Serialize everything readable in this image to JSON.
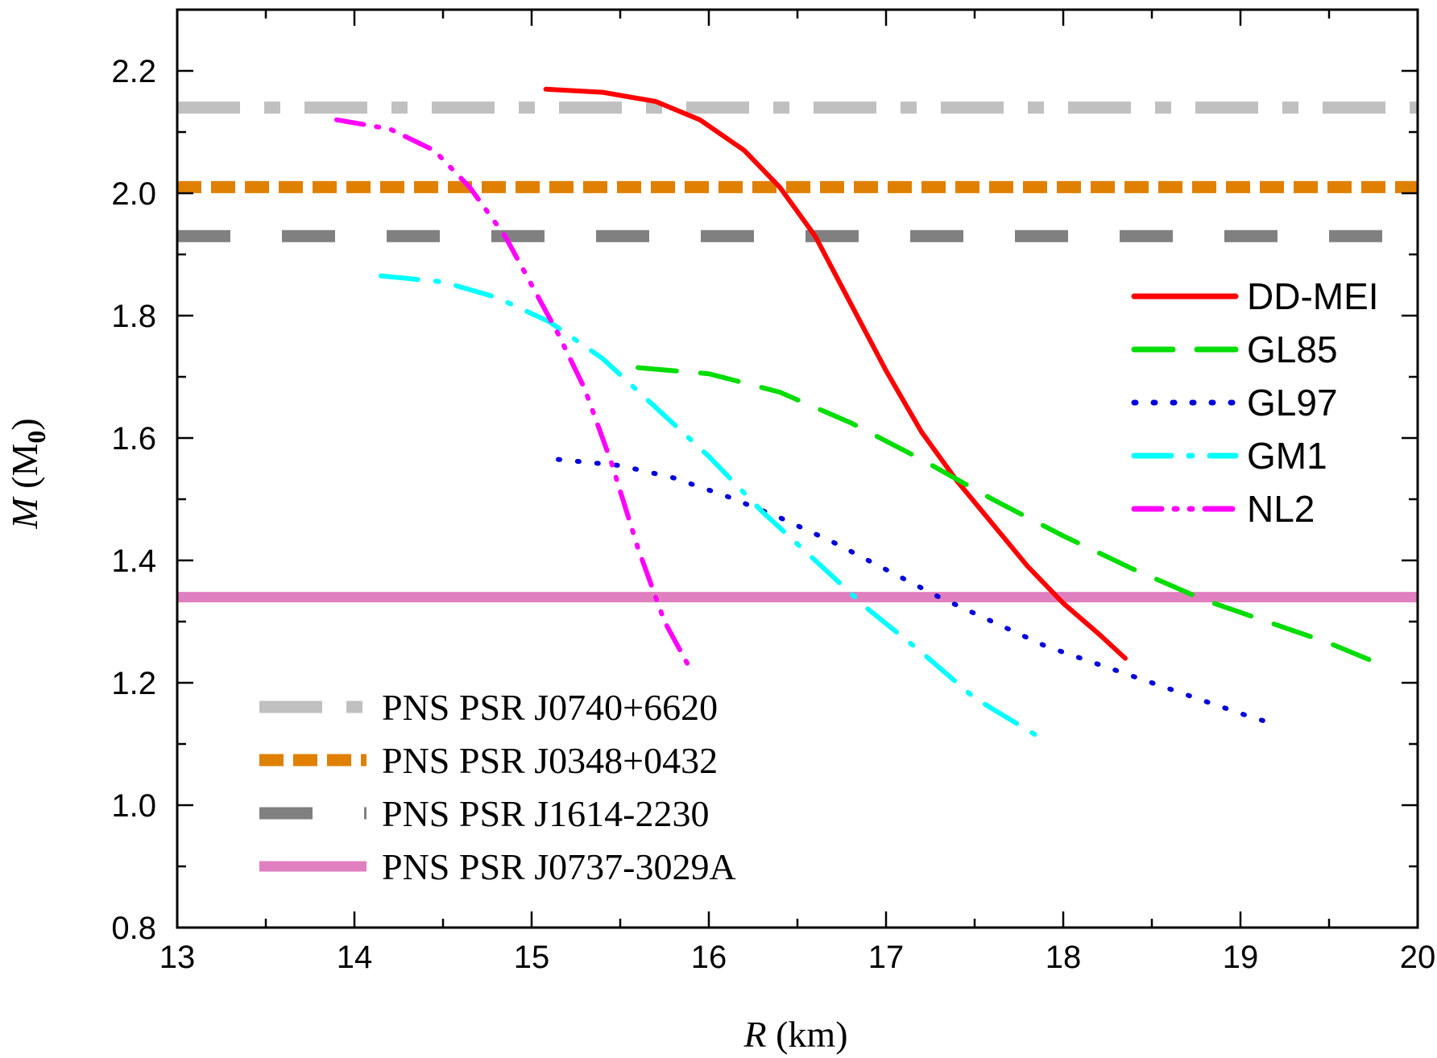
{
  "chart_data": {
    "type": "line",
    "xlabel": {
      "var": "R",
      "rest": " (km)"
    },
    "ylabel": {
      "var": "M",
      "rest": " (M",
      "sub": "0",
      "close": ")"
    },
    "xlim": [
      13,
      20
    ],
    "ylim": [
      0.8,
      2.3
    ],
    "xticks": [
      13,
      14,
      15,
      16,
      17,
      18,
      19,
      20
    ],
    "yticks": [
      "0.8",
      "1.0",
      "1.2",
      "1.4",
      "1.6",
      "1.8",
      "2.0",
      "2.2"
    ],
    "grid": false,
    "legends": {
      "series_placement": "right",
      "reference_placement": "bottom-left"
    },
    "series": [
      {
        "name": "DD-MEI",
        "color": "#ff0000",
        "style": "solid",
        "x": [
          15.08,
          15.4,
          15.7,
          15.95,
          16.2,
          16.4,
          16.6,
          16.8,
          17.0,
          17.2,
          17.4,
          17.6,
          17.8,
          18.0,
          18.2,
          18.35
        ],
        "y": [
          2.17,
          2.165,
          2.15,
          2.12,
          2.07,
          2.01,
          1.93,
          1.82,
          1.71,
          1.61,
          1.53,
          1.46,
          1.39,
          1.33,
          1.28,
          1.24
        ]
      },
      {
        "name": "GL85",
        "color": "#00dd00",
        "style": "dash",
        "x": [
          15.6,
          16.0,
          16.4,
          16.8,
          17.2,
          17.6,
          18.0,
          18.4,
          18.8,
          19.2,
          19.5,
          19.75
        ],
        "y": [
          1.715,
          1.705,
          1.675,
          1.625,
          1.565,
          1.5,
          1.44,
          1.385,
          1.335,
          1.295,
          1.265,
          1.235
        ]
      },
      {
        "name": "GL97",
        "color": "#0000dd",
        "style": "dot",
        "x": [
          15.15,
          15.5,
          15.8,
          16.1,
          16.4,
          16.7,
          17.0,
          17.3,
          17.6,
          17.9,
          18.2,
          18.5,
          18.8,
          19.05,
          19.22
        ],
        "y": [
          1.565,
          1.555,
          1.535,
          1.505,
          1.47,
          1.43,
          1.385,
          1.34,
          1.3,
          1.26,
          1.23,
          1.2,
          1.17,
          1.145,
          1.13
        ]
      },
      {
        "name": "GM1",
        "color": "#00ffff",
        "style": "dashdot",
        "x": [
          14.15,
          14.5,
          14.8,
          15.1,
          15.4,
          15.7,
          16.0,
          16.3,
          16.6,
          16.9,
          17.2,
          17.5,
          17.9
        ],
        "y": [
          1.865,
          1.855,
          1.83,
          1.79,
          1.73,
          1.65,
          1.57,
          1.48,
          1.4,
          1.32,
          1.25,
          1.175,
          1.105
        ]
      },
      {
        "name": "NL2",
        "color": "#ff00ff",
        "style": "dashdotdot",
        "x": [
          13.9,
          14.2,
          14.45,
          14.65,
          14.85,
          15.0,
          15.15,
          15.3,
          15.45,
          15.6,
          15.75,
          15.9
        ],
        "y": [
          2.12,
          2.105,
          2.07,
          2.01,
          1.93,
          1.85,
          1.77,
          1.68,
          1.56,
          1.42,
          1.3,
          1.22
        ]
      }
    ],
    "reference_lines": [
      {
        "name": "PNS PSR J0740+6620",
        "y": 2.14,
        "color": "#c0c0c0",
        "style": "dashdot"
      },
      {
        "name": "PNS PSR J0348+0432",
        "y": 2.01,
        "color": "#e08000",
        "style": "dash"
      },
      {
        "name": "PNS PSR J1614-2230",
        "y": 1.93,
        "color": "#808080",
        "style": "longdash"
      },
      {
        "name": "PNS PSR J0737-3029A",
        "y": 1.34,
        "color": "#e07fbf",
        "style": "solid"
      }
    ]
  }
}
